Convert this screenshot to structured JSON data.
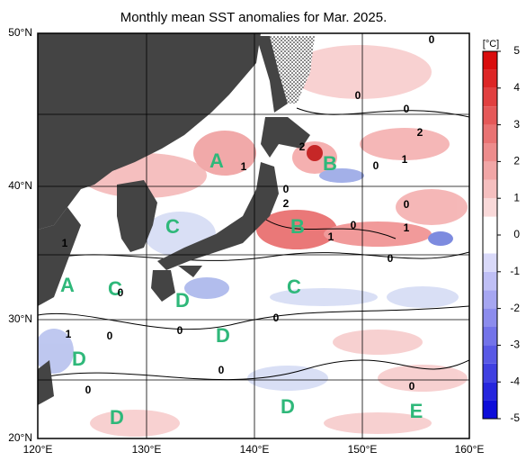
{
  "title": "Monthly mean SST anomalies for Mar. 2025.",
  "lon_labels": [
    "120°E",
    "130°E",
    "140°E",
    "150°E",
    "160°E"
  ],
  "lat_labels": [
    "50°N",
    "40°N",
    "30°N",
    "20°N"
  ],
  "colorbar": {
    "unit": "[°C]",
    "lim": [
      -5,
      5
    ],
    "ticks": [
      5,
      4,
      3,
      2,
      1,
      0,
      -1,
      -2,
      -3,
      -4,
      -5
    ]
  },
  "regions": [
    "A",
    "B",
    "C",
    "B",
    "A",
    "C",
    "D",
    "C",
    "D",
    "D",
    "D",
    "D",
    "E"
  ],
  "contour_labels": [
    "0",
    "0",
    "0",
    "1",
    "2",
    "2",
    "1",
    "0",
    "0",
    "2",
    "1",
    "0",
    "0",
    "1",
    "1",
    "0",
    "0",
    "1",
    "0",
    "0",
    "0",
    "0",
    "0",
    "0"
  ]
}
